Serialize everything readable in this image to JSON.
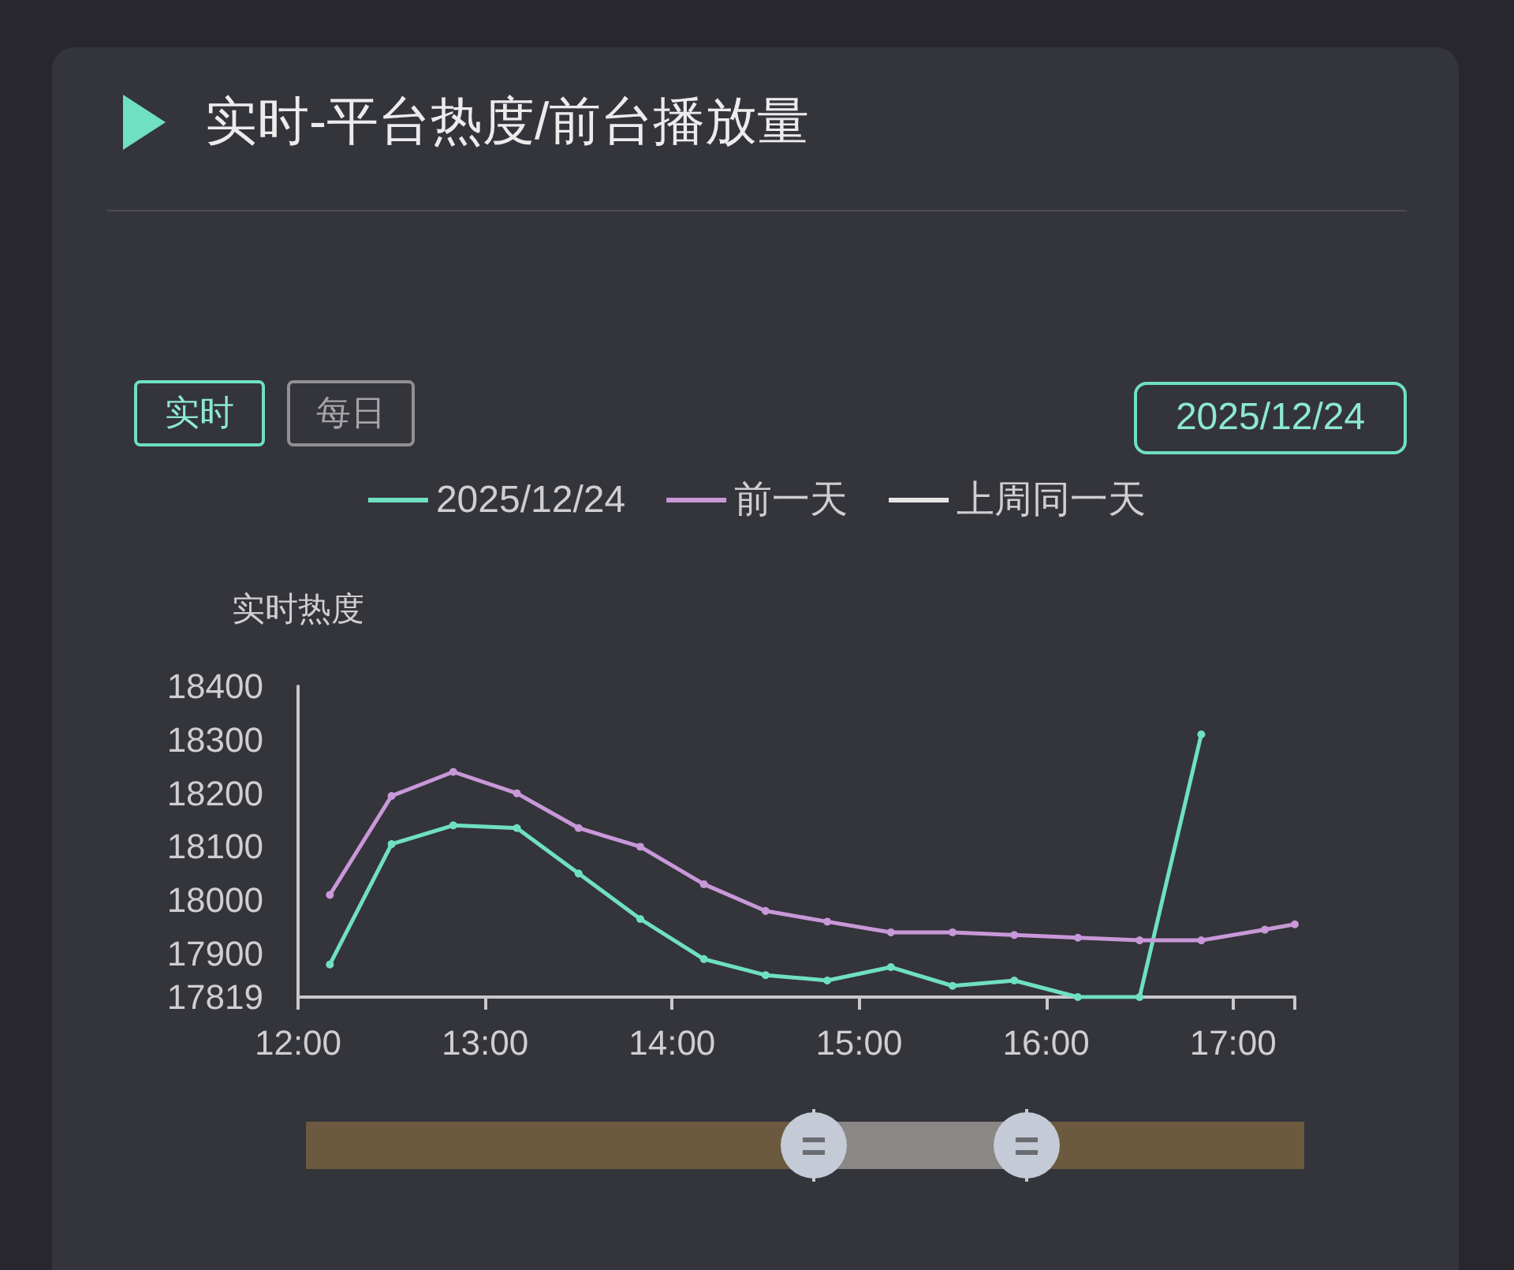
{
  "chart_data": {
    "type": "line",
    "title": "实时-平台热度/前台播放量",
    "ylabel": "实时热度",
    "annotations": [
      "实时",
      "每日",
      "2025/12/24"
    ],
    "x": [
      12.17,
      12.5,
      12.83,
      13.17,
      13.5,
      13.83,
      14.17,
      14.5,
      14.83,
      15.17,
      15.5,
      15.83,
      16.17,
      16.5,
      16.83,
      17.17,
      17.33
    ],
    "series": [
      {
        "name": "2025/12/24",
        "color": "#6fe0c2",
        "values": [
          17880,
          18105,
          18140,
          18135,
          18050,
          17965,
          17890,
          17860,
          17850,
          17875,
          17840,
          17850,
          17819,
          17819,
          18310,
          null,
          null
        ]
      },
      {
        "name": "前一天",
        "color": "#c898d8",
        "values": [
          18010,
          18195,
          18240,
          18200,
          18135,
          18100,
          18030,
          17980,
          17960,
          17940,
          17940,
          17935,
          17930,
          17925,
          17925,
          17945,
          17955
        ]
      },
      {
        "name": "上周同一天",
        "color": "#e6e6e6",
        "values": [
          null,
          null,
          null,
          null,
          null,
          null,
          null,
          null,
          null,
          null,
          null,
          null,
          null,
          null,
          null,
          null,
          null
        ]
      }
    ],
    "xlim": [
      12,
      17.33
    ],
    "xticks": [
      {
        "value": 12,
        "label": "12:00"
      },
      {
        "value": 13,
        "label": "13:00"
      },
      {
        "value": 14,
        "label": "14:00"
      },
      {
        "value": 15,
        "label": "15:00"
      },
      {
        "value": 16,
        "label": "16:00"
      },
      {
        "value": 17,
        "label": "17:00"
      },
      {
        "value": 17.33,
        "label": null
      }
    ],
    "ylim": [
      17819,
      18400
    ],
    "yticks": [
      17819,
      17900,
      18000,
      18100,
      18200,
      18300,
      18400
    ],
    "grid": false,
    "legend": "top",
    "marker": "circle",
    "line_style": "solid"
  }
}
